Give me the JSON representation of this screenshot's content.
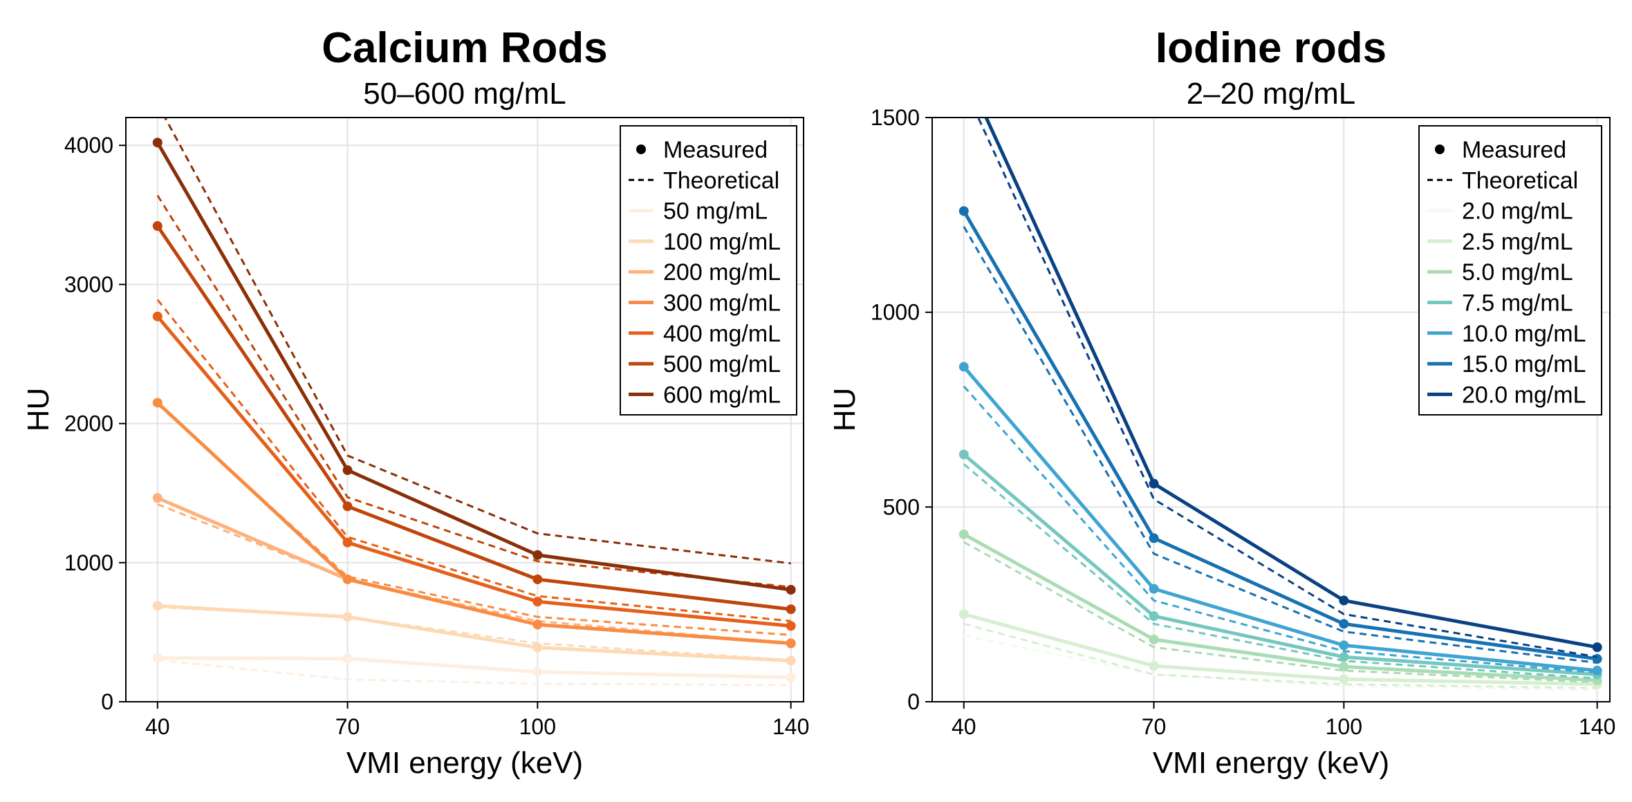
{
  "chart_data": [
    {
      "type": "line",
      "title": "Calcium Rods",
      "subtitle": "50–600 mg/mL",
      "xlabel": "VMI energy (keV)",
      "ylabel": "HU",
      "x": [
        40,
        70,
        100,
        140
      ],
      "xticks": [
        "40",
        "70",
        "100",
        "140"
      ],
      "yticks": [
        "0",
        "1000",
        "2000",
        "3000",
        "4000"
      ],
      "ytick_values": [
        0,
        1000,
        2000,
        3000,
        4000
      ],
      "xlim": [
        35,
        142
      ],
      "ylim": [
        0,
        4200
      ],
      "grid": true,
      "legend_position": "top-right",
      "legend_measured": "Measured",
      "legend_theoretical": "Theoretical",
      "series": [
        {
          "name": "50 mg/mL",
          "color": "#fdeee0",
          "measured": [
            315,
            310,
            215,
            175
          ],
          "theoretical": [
            300,
            160,
            130,
            120
          ]
        },
        {
          "name": "100 mg/mL",
          "color": "#fdd9b5",
          "measured": [
            690,
            610,
            390,
            295
          ],
          "theoretical": [
            680,
            610,
            420,
            300
          ]
        },
        {
          "name": "200 mg/mL",
          "color": "#fdb27c",
          "measured": [
            1465,
            880,
            555,
            420
          ],
          "theoretical": [
            1420,
            880,
            580,
            420
          ]
        },
        {
          "name": "300 mg/mL",
          "color": "#f98c44",
          "measured": [
            2150,
            880,
            555,
            420
          ],
          "theoretical": [
            2140,
            900,
            610,
            480
          ]
        },
        {
          "name": "400 mg/mL",
          "color": "#e5601a",
          "measured": [
            2770,
            1145,
            720,
            545
          ],
          "theoretical": [
            2890,
            1185,
            760,
            580
          ]
        },
        {
          "name": "500 mg/mL",
          "color": "#c0450a",
          "measured": [
            3420,
            1405,
            880,
            665
          ],
          "theoretical": [
            3640,
            1470,
            1010,
            825
          ]
        },
        {
          "name": "600 mg/mL",
          "color": "#8a2f07",
          "measured": [
            4020,
            1665,
            1055,
            805
          ],
          "theoretical": [
            4300,
            1770,
            1210,
            995
          ]
        }
      ]
    },
    {
      "type": "line",
      "title": "Iodine rods",
      "subtitle": "2–20 mg/mL",
      "xlabel": "VMI energy (keV)",
      "ylabel": "HU",
      "x": [
        40,
        70,
        100,
        140
      ],
      "xticks": [
        "40",
        "70",
        "100",
        "140"
      ],
      "yticks": [
        "0",
        "500",
        "1000",
        "1500"
      ],
      "ytick_values": [
        0,
        500,
        1000,
        1500
      ],
      "xlim": [
        35,
        142
      ],
      "ylim": [
        0,
        1500
      ],
      "grid": true,
      "legend_position": "top-right",
      "legend_measured": "Measured",
      "legend_theoretical": "Theoretical",
      "series": [
        {
          "name": "2.0 mg/mL",
          "color": "#f3faf0",
          "measured": [
            225,
            92,
            58,
            45
          ],
          "theoretical": [
            170,
            70,
            40,
            30
          ]
        },
        {
          "name": "2.5 mg/mL",
          "color": "#d5efd0",
          "measured": [
            225,
            92,
            58,
            45
          ],
          "theoretical": [
            200,
            70,
            45,
            35
          ]
        },
        {
          "name": "5.0 mg/mL",
          "color": "#a9dcb4",
          "measured": [
            430,
            160,
            90,
            55
          ],
          "theoretical": [
            410,
            140,
            80,
            50
          ]
        },
        {
          "name": "7.5 mg/mL",
          "color": "#74c7be",
          "measured": [
            635,
            220,
            115,
            70
          ],
          "theoretical": [
            610,
            200,
            105,
            60
          ]
        },
        {
          "name": "10.0 mg/mL",
          "color": "#3fa4d2",
          "measured": [
            860,
            290,
            145,
            80
          ],
          "theoretical": [
            810,
            260,
            130,
            75
          ]
        },
        {
          "name": "15.0 mg/mL",
          "color": "#1670b2",
          "measured": [
            1260,
            420,
            200,
            110
          ],
          "theoretical": [
            1220,
            380,
            180,
            100
          ]
        },
        {
          "name": "20.0 mg/mL",
          "color": "#0a4183",
          "measured": [
            1625,
            560,
            260,
            140
          ],
          "theoretical": [
            1580,
            520,
            225,
            115
          ]
        }
      ]
    }
  ]
}
